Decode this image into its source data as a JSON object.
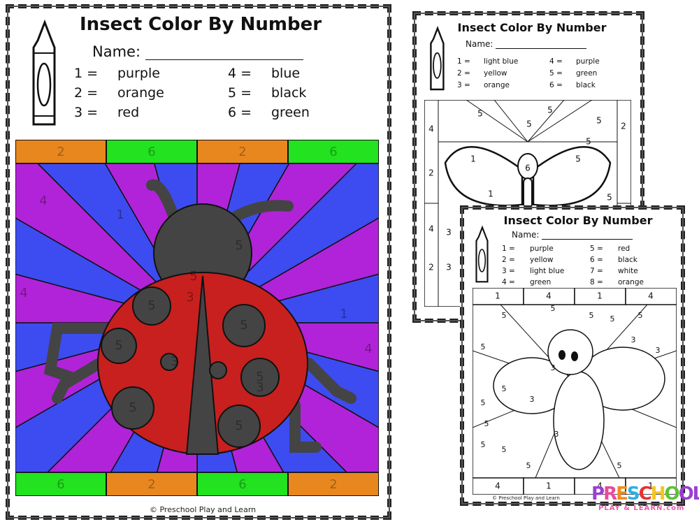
{
  "main_sheet": {
    "title": "Insect Color By Number",
    "name_label": "Name:",
    "legend": [
      {
        "num": "1 =",
        "color": "purple"
      },
      {
        "num": "2 =",
        "color": "orange"
      },
      {
        "num": "3 =",
        "color": "red"
      },
      {
        "num": "4 =",
        "color": "blue"
      },
      {
        "num": "5 =",
        "color": "black"
      },
      {
        "num": "6 =",
        "color": "green"
      }
    ],
    "top_strip": [
      "2",
      "6",
      "2",
      "6"
    ],
    "bottom_strip": [
      "6",
      "2",
      "6",
      "2"
    ],
    "labels": [
      "4",
      "1",
      "5",
      "5",
      "3",
      "3",
      "5",
      "5",
      "5",
      "5",
      "5",
      "5",
      "3",
      "4",
      "1",
      "4"
    ],
    "footer": "© Preschool Play and Learn",
    "colors": {
      "purple": "#b123d8",
      "orange": "#e9871f",
      "red": "#c8201e",
      "blue": "#3d4cf0",
      "black": "#444444",
      "green": "#23e21f"
    }
  },
  "butterfly_sheet": {
    "title": "Insect Color By Number",
    "name_label": "Name:",
    "legend": [
      {
        "num": "1 =",
        "color": "light blue"
      },
      {
        "num": "4 =",
        "color": "purple"
      },
      {
        "num": "2 =",
        "color": "yellow"
      },
      {
        "num": "5 =",
        "color": "green"
      },
      {
        "num": "3 =",
        "color": "orange"
      },
      {
        "num": "6 =",
        "color": "black"
      }
    ],
    "labels": [
      "4",
      "5",
      "5",
      "5",
      "5",
      "2",
      "5",
      "6",
      "2",
      "1",
      "1",
      "5",
      "4",
      "3",
      "2",
      "3",
      "5"
    ]
  },
  "bee_sheet": {
    "title": "Insect Color By Number",
    "name_label": "Name:",
    "legend": [
      {
        "num": "1 =",
        "color": "purple"
      },
      {
        "num": "5 =",
        "color": "red"
      },
      {
        "num": "2 =",
        "color": "yellow"
      },
      {
        "num": "6 =",
        "color": "black"
      },
      {
        "num": "3 =",
        "color": "light blue"
      },
      {
        "num": "7 =",
        "color": "white"
      },
      {
        "num": "4 =",
        "color": "green"
      },
      {
        "num": "8 =",
        "color": "orange"
      }
    ],
    "top_strip": [
      "1",
      "4",
      "1",
      "4"
    ],
    "bottom_strip": [
      "4",
      "1",
      "4",
      "1"
    ],
    "labels": [
      "5",
      "5",
      "5",
      "5",
      "5",
      "5",
      "3",
      "3",
      "3",
      "5",
      "3",
      "5",
      "5",
      "3",
      "5",
      "5",
      "5",
      "5"
    ],
    "footer": "© Preschool Play and Learn"
  },
  "logo": {
    "word": "PRESCHOOL",
    "tagline": "PLAY & LEARN.com"
  }
}
